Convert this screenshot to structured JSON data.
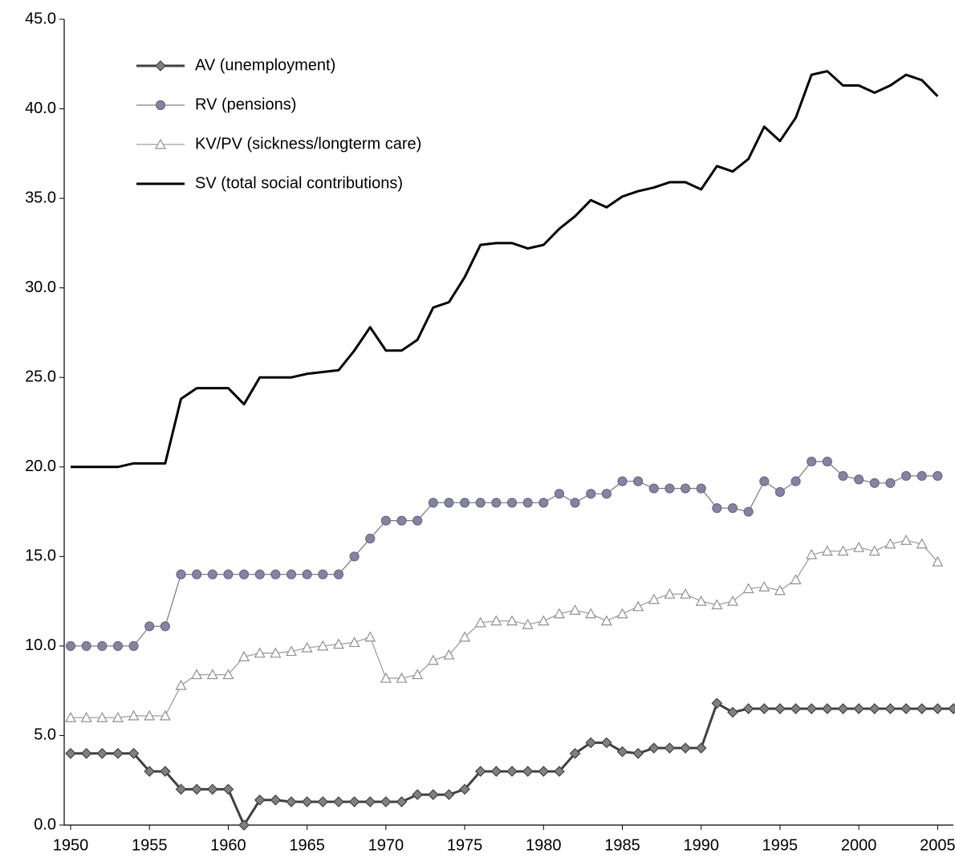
{
  "chart_data": {
    "type": "line",
    "x": [
      1950,
      1951,
      1952,
      1953,
      1954,
      1955,
      1956,
      1957,
      1958,
      1959,
      1960,
      1961,
      1962,
      1963,
      1964,
      1965,
      1966,
      1967,
      1968,
      1969,
      1970,
      1971,
      1972,
      1973,
      1974,
      1975,
      1976,
      1977,
      1978,
      1979,
      1980,
      1981,
      1982,
      1983,
      1984,
      1985,
      1986,
      1987,
      1988,
      1989,
      1990,
      1991,
      1992,
      1993,
      1994,
      1995,
      1996,
      1997,
      1998,
      1999,
      2000,
      2001,
      2002,
      2003,
      2004,
      2005,
      2006
    ],
    "series": [
      {
        "name": "AV (unemployment)",
        "color": "#404040",
        "marker": "diamond",
        "values": [
          4.0,
          4.0,
          4.0,
          4.0,
          4.0,
          3.0,
          3.0,
          2.0,
          2.0,
          2.0,
          2.0,
          0.0,
          1.4,
          1.4,
          1.3,
          1.3,
          1.3,
          1.3,
          1.3,
          1.3,
          1.3,
          1.3,
          1.7,
          1.7,
          1.7,
          2.0,
          3.0,
          3.0,
          3.0,
          3.0,
          3.0,
          3.0,
          4.0,
          4.6,
          4.6,
          4.1,
          4.0,
          4.3,
          4.3,
          4.3,
          4.3,
          6.8,
          6.3,
          6.5,
          6.5,
          6.5,
          6.5,
          6.5,
          6.5,
          6.5,
          6.5,
          6.5,
          6.5,
          6.5,
          6.5,
          6.5,
          6.5
        ]
      },
      {
        "name": "RV (pensions)",
        "color": "#808080",
        "marker": "circle",
        "values": [
          10.0,
          10.0,
          10.0,
          10.0,
          10.0,
          11.1,
          11.1,
          14.0,
          14.0,
          14.0,
          14.0,
          14.0,
          14.0,
          14.0,
          14.0,
          14.0,
          14.0,
          14.0,
          15.0,
          16.0,
          17.0,
          17.0,
          17.0,
          18.0,
          18.0,
          18.0,
          18.0,
          18.0,
          18.0,
          18.0,
          18.0,
          18.5,
          18.0,
          18.5,
          18.5,
          19.2,
          19.2,
          18.8,
          18.8,
          18.8,
          18.8,
          17.7,
          17.7,
          17.5,
          19.2,
          18.6,
          19.2,
          20.3,
          20.3,
          19.5,
          19.3,
          19.1,
          19.1,
          19.5,
          19.5,
          19.5,
          null
        ]
      },
      {
        "name": "KV/PV (sickness/longterm care)",
        "color": "#a0a0a0",
        "marker": "triangle",
        "values": [
          6.0,
          6.0,
          6.0,
          6.0,
          6.1,
          6.1,
          6.1,
          7.8,
          8.4,
          8.4,
          8.4,
          9.4,
          9.6,
          9.6,
          9.7,
          9.9,
          10.0,
          10.1,
          10.2,
          10.5,
          8.2,
          8.2,
          8.4,
          9.2,
          9.5,
          10.5,
          11.3,
          11.4,
          11.4,
          11.2,
          11.4,
          11.8,
          12.0,
          11.8,
          11.4,
          11.8,
          12.2,
          12.6,
          12.9,
          12.9,
          12.5,
          12.3,
          12.5,
          13.2,
          13.3,
          13.1,
          13.7,
          15.1,
          15.3,
          15.3,
          15.5,
          15.3,
          15.7,
          15.9,
          15.7,
          14.7,
          null
        ]
      },
      {
        "name": "SV (total social contributions)",
        "color": "#000000",
        "marker": "none",
        "values": [
          20.0,
          20.0,
          20.0,
          20.0,
          20.2,
          20.2,
          20.2,
          23.8,
          24.4,
          24.4,
          24.4,
          23.5,
          25.0,
          25.0,
          25.0,
          25.2,
          25.3,
          25.4,
          26.5,
          27.8,
          26.5,
          26.5,
          27.1,
          28.9,
          29.2,
          30.6,
          32.4,
          32.5,
          32.5,
          32.2,
          32.4,
          33.3,
          34.0,
          34.9,
          34.5,
          35.1,
          35.4,
          35.6,
          35.9,
          35.9,
          35.5,
          36.8,
          36.5,
          37.2,
          39.0,
          38.2,
          39.5,
          41.9,
          42.1,
          41.3,
          41.3,
          40.9,
          41.3,
          41.9,
          41.6,
          40.7,
          null
        ]
      }
    ],
    "xlim": [
      1950,
      2006
    ],
    "xticks": [
      1950,
      1955,
      1960,
      1965,
      1970,
      1975,
      1980,
      1985,
      1990,
      1995,
      2000,
      2005
    ],
    "ylim": [
      0,
      45
    ],
    "yticks": [
      {
        "value": 0,
        "label": "0.0"
      },
      {
        "value": 5,
        "label": "5.0"
      },
      {
        "value": 10,
        "label": "10.0"
      },
      {
        "value": 15,
        "label": "15.0"
      },
      {
        "value": 20,
        "label": "20.0"
      },
      {
        "value": 25,
        "label": "25.0"
      },
      {
        "value": 30,
        "label": "30.0"
      },
      {
        "value": 35,
        "label": "35.0"
      },
      {
        "value": 40,
        "label": "40.0"
      },
      {
        "value": 45,
        "label": "45.0"
      }
    ],
    "grid": false,
    "legend": "top-left"
  }
}
